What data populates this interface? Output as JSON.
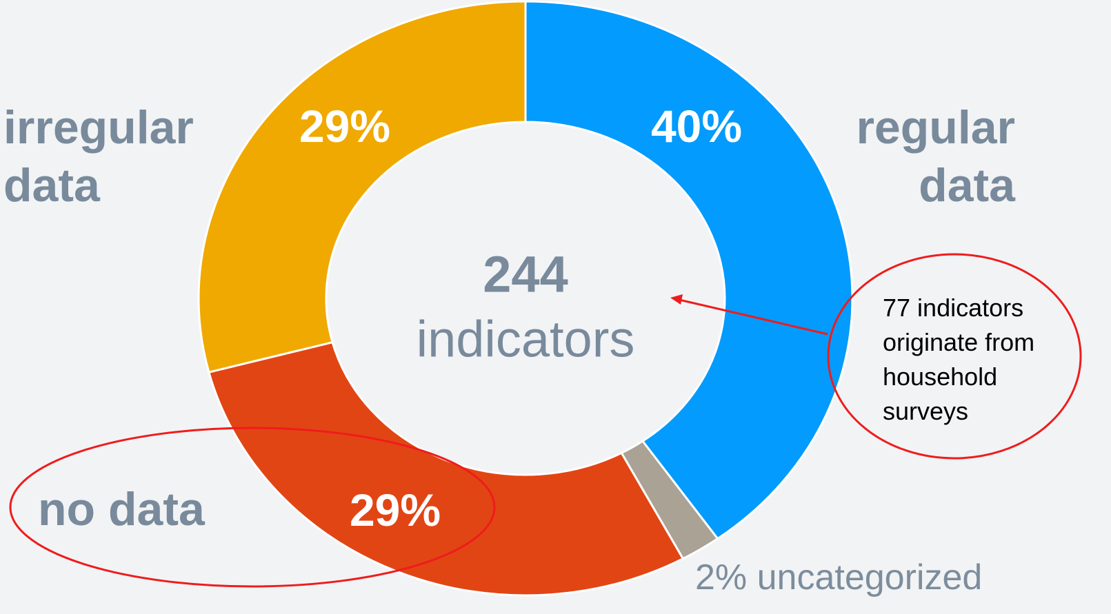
{
  "chart_data": {
    "type": "donut",
    "categories": [
      "regular data",
      "uncategorized",
      "no data",
      "irregular data"
    ],
    "values": [
      40,
      2,
      29,
      29
    ],
    "value_labels": [
      "40%",
      "2%",
      "29%",
      "29%"
    ],
    "colors": [
      "#039bfd",
      "#aaa295",
      "#e24514",
      "#f0a900"
    ],
    "center_value": "244",
    "center_label": "indicators",
    "annotation": "77 indicators originate from household surveys"
  }
}
